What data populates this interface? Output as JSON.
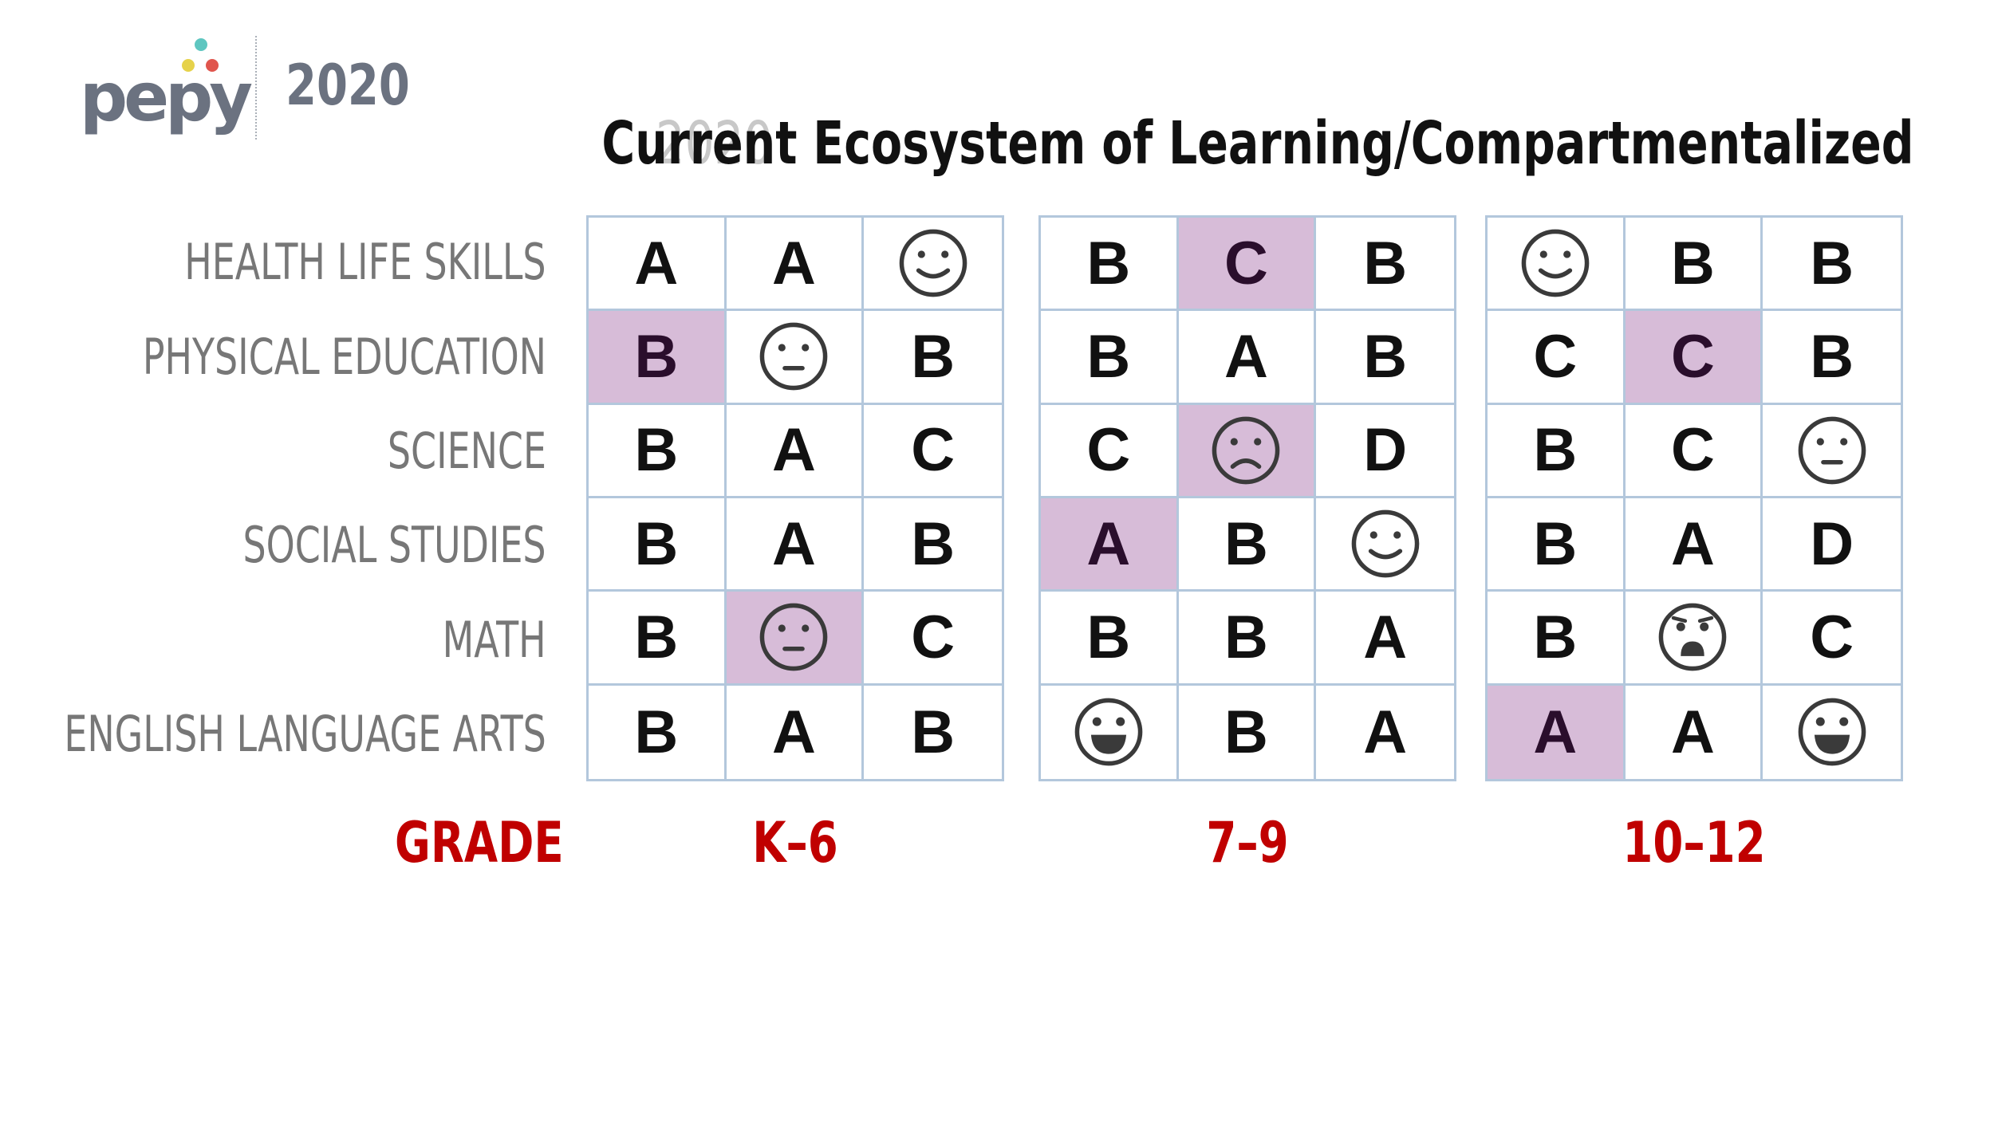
{
  "header": {
    "logo_text": "pepy",
    "logo_year": "2020",
    "title_year": "2020",
    "title": "Current Ecosystem of Learning/Compartmentalized"
  },
  "colors": {
    "highlight": "#d7bcd8",
    "grid_border": "#b3c7dc",
    "grade_text": "#c00000",
    "label_text": "#777777"
  },
  "subjects": [
    "HEALTH LIFE SKILLS",
    "PHYSICAL EDUCATION",
    "SCIENCE",
    "SOCIAL STUDIES",
    "MATH",
    "ENGLISH LANGUAGE ARTS"
  ],
  "grade_label": "GRADE",
  "grade_bands": [
    {
      "label": "K–6",
      "rows": [
        [
          {
            "v": "A"
          },
          {
            "v": "A"
          },
          {
            "icon": "smile-face-icon"
          }
        ],
        [
          {
            "v": "B",
            "hl": true
          },
          {
            "icon": "neutral-face-icon"
          },
          {
            "v": "B"
          }
        ],
        [
          {
            "v": "B"
          },
          {
            "v": "A"
          },
          {
            "v": "C"
          }
        ],
        [
          {
            "v": "B"
          },
          {
            "v": "A"
          },
          {
            "v": "B"
          }
        ],
        [
          {
            "v": "B"
          },
          {
            "icon": "neutral-face-icon",
            "hl": true
          },
          {
            "v": "C"
          }
        ],
        [
          {
            "v": "B"
          },
          {
            "v": "A"
          },
          {
            "v": "B"
          }
        ]
      ]
    },
    {
      "label": "7–9",
      "rows": [
        [
          {
            "v": "B"
          },
          {
            "v": "C",
            "hl": true
          },
          {
            "v": "B"
          }
        ],
        [
          {
            "v": "B"
          },
          {
            "v": "A"
          },
          {
            "v": "B"
          }
        ],
        [
          {
            "v": "C"
          },
          {
            "icon": "sad-face-icon",
            "hl": true
          },
          {
            "v": "D"
          }
        ],
        [
          {
            "v": "A",
            "hl": true
          },
          {
            "v": "B"
          },
          {
            "icon": "smile-face-icon"
          }
        ],
        [
          {
            "v": "B"
          },
          {
            "v": "B"
          },
          {
            "v": "A"
          }
        ],
        [
          {
            "icon": "grin-face-icon"
          },
          {
            "v": "B"
          },
          {
            "v": "A"
          }
        ]
      ]
    },
    {
      "label": "10–12",
      "rows": [
        [
          {
            "icon": "smile-face-icon"
          },
          {
            "v": "B"
          },
          {
            "v": "B"
          }
        ],
        [
          {
            "v": "C"
          },
          {
            "v": "C",
            "hl": true
          },
          {
            "v": "B"
          }
        ],
        [
          {
            "v": "B"
          },
          {
            "v": "C"
          },
          {
            "icon": "neutral-face-icon"
          }
        ],
        [
          {
            "v": "B"
          },
          {
            "v": "A"
          },
          {
            "v": "D"
          }
        ],
        [
          {
            "v": "B"
          },
          {
            "icon": "shocked-face-icon"
          },
          {
            "v": "C"
          }
        ],
        [
          {
            "v": "A",
            "hl": true
          },
          {
            "v": "A"
          },
          {
            "icon": "grin-face-icon"
          }
        ]
      ]
    }
  ]
}
